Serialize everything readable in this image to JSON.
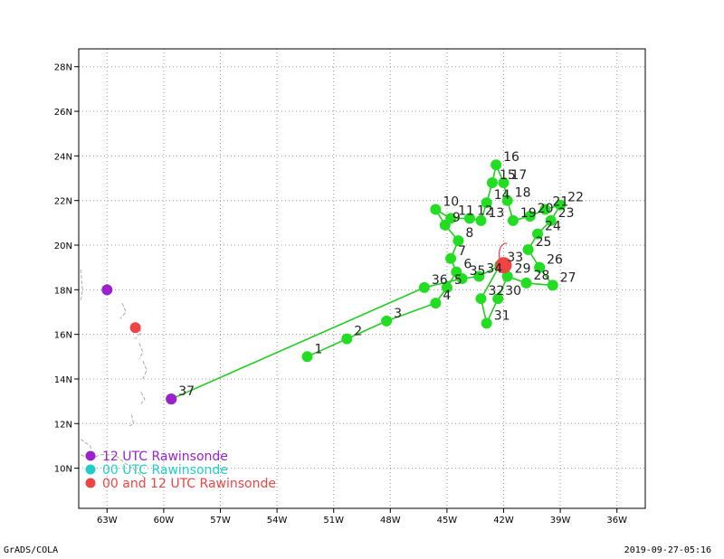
{
  "map": {
    "projection": "lat-lon",
    "lon_range": [
      -64.5,
      -34.5
    ],
    "lat_range": [
      8.2,
      28.8
    ],
    "x_ticks": [
      {
        "value": -63,
        "label": "63W"
      },
      {
        "value": -60,
        "label": "60W"
      },
      {
        "value": -57,
        "label": "57W"
      },
      {
        "value": -54,
        "label": "54W"
      },
      {
        "value": -51,
        "label": "51W"
      },
      {
        "value": -48,
        "label": "48W"
      },
      {
        "value": -45,
        "label": "45W"
      },
      {
        "value": -42,
        "label": "42W"
      },
      {
        "value": -39,
        "label": "39W"
      },
      {
        "value": -36,
        "label": "36W"
      }
    ],
    "y_ticks": [
      {
        "value": 10,
        "label": "10N"
      },
      {
        "value": 12,
        "label": "12N"
      },
      {
        "value": 14,
        "label": "14N"
      },
      {
        "value": 16,
        "label": "16N"
      },
      {
        "value": 18,
        "label": "18N"
      },
      {
        "value": 20,
        "label": "20N"
      },
      {
        "value": 22,
        "label": "22N"
      },
      {
        "value": 24,
        "label": "24N"
      },
      {
        "value": 26,
        "label": "26N"
      },
      {
        "value": 28,
        "label": "28N"
      }
    ],
    "grid": true,
    "colors": {
      "track": "#22cc22",
      "drop": "#22dd22",
      "purple": "#9922cc",
      "cyan": "#22cccc",
      "red": "#ee4444",
      "coast": "#aaaaaa"
    }
  },
  "track": [
    {
      "label": "1",
      "lon": -52.4,
      "lat": 15.0
    },
    {
      "label": "2",
      "lon": -50.3,
      "lat": 15.8
    },
    {
      "label": "3",
      "lon": -48.2,
      "lat": 16.6
    },
    {
      "label": "4",
      "lon": -45.6,
      "lat": 17.4
    },
    {
      "label": "5",
      "lon": -45.0,
      "lat": 18.1
    },
    {
      "label": "6",
      "lon": -44.5,
      "lat": 18.8
    },
    {
      "label": "7",
      "lon": -44.8,
      "lat": 19.4
    },
    {
      "label": "8",
      "lon": -44.4,
      "lat": 20.2
    },
    {
      "label": "9",
      "lon": -45.1,
      "lat": 20.9
    },
    {
      "label": "10",
      "lon": -45.6,
      "lat": 21.6
    },
    {
      "label": "11",
      "lon": -44.8,
      "lat": 21.2
    },
    {
      "label": "12",
      "lon": -43.8,
      "lat": 21.2
    },
    {
      "label": "13",
      "lon": -43.2,
      "lat": 21.1
    },
    {
      "label": "14",
      "lon": -42.9,
      "lat": 21.9
    },
    {
      "label": "15",
      "lon": -42.6,
      "lat": 22.8
    },
    {
      "label": "16",
      "lon": -42.4,
      "lat": 23.6
    },
    {
      "label": "17",
      "lon": -42.0,
      "lat": 22.8
    },
    {
      "label": "18",
      "lon": -41.8,
      "lat": 22.0
    },
    {
      "label": "19",
      "lon": -41.5,
      "lat": 21.1
    },
    {
      "label": "20",
      "lon": -40.6,
      "lat": 21.3
    },
    {
      "label": "21",
      "lon": -39.8,
      "lat": 21.6
    },
    {
      "label": "22",
      "lon": -39.0,
      "lat": 21.8
    },
    {
      "label": "23",
      "lon": -39.5,
      "lat": 21.1
    },
    {
      "label": "24",
      "lon": -40.2,
      "lat": 20.5
    },
    {
      "label": "25",
      "lon": -40.7,
      "lat": 19.8
    },
    {
      "label": "26",
      "lon": -40.1,
      "lat": 19.0
    },
    {
      "label": "27",
      "lon": -39.4,
      "lat": 18.2
    },
    {
      "label": "28",
      "lon": -40.8,
      "lat": 18.3
    },
    {
      "label": "29",
      "lon": -41.8,
      "lat": 18.6
    },
    {
      "label": "30",
      "lon": -42.3,
      "lat": 17.6
    },
    {
      "label": "31",
      "lon": -42.9,
      "lat": 16.5
    },
    {
      "label": "32",
      "lon": -43.2,
      "lat": 17.6
    },
    {
      "label": "33",
      "lon": -42.2,
      "lat": 19.1
    },
    {
      "label": "34",
      "lon": -43.3,
      "lat": 18.6
    },
    {
      "label": "35",
      "lon": -44.2,
      "lat": 18.5
    },
    {
      "label": "36",
      "lon": -46.2,
      "lat": 18.1
    },
    {
      "label": "37",
      "lon": -59.6,
      "lat": 13.1
    }
  ],
  "storm_center": {
    "lon": -42.0,
    "lat": 19.1
  },
  "stations": [
    {
      "type": "12",
      "lon": -63.0,
      "lat": 18.0
    },
    {
      "type": "00and12",
      "lon": -61.5,
      "lat": 16.3
    },
    {
      "type": "12",
      "lon": -59.6,
      "lat": 13.1
    }
  ],
  "legend": [
    {
      "key": "12",
      "label": "12 UTC Rawinsonde",
      "color": "#9922cc"
    },
    {
      "key": "00",
      "label": "00 UTC Rawinsonde",
      "color": "#22cccc"
    },
    {
      "key": "00and12",
      "label": "00 and 12 UTC Rawinsonde",
      "color": "#ee4444"
    }
  ],
  "footer": {
    "left": "GrADS/COLA",
    "right": "2019-09-27-05:16"
  }
}
